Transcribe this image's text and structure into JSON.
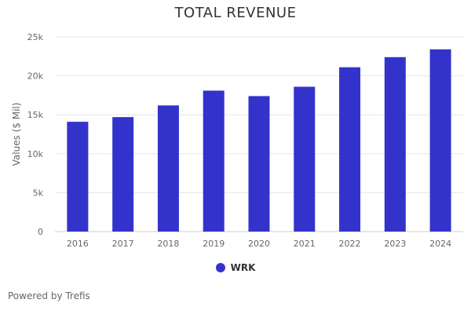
{
  "chart_data": {
    "type": "bar",
    "title": "TOTAL REVENUE",
    "categories": [
      "2016",
      "2017",
      "2018",
      "2019",
      "2020",
      "2021",
      "2022",
      "2023",
      "2024"
    ],
    "series": [
      {
        "name": "WRK",
        "values": [
          14100,
          14700,
          16200,
          18100,
          17400,
          18600,
          21100,
          22400,
          23400
        ]
      }
    ],
    "xlabel": "",
    "ylabel": "Values ($ Mil)",
    "ylim": [
      0,
      25000
    ],
    "yticks": [
      0,
      5000,
      10000,
      15000,
      20000,
      25000
    ],
    "ytick_labels": [
      "0",
      "5k",
      "10k",
      "15k",
      "20k",
      "25k"
    ],
    "grid": true,
    "legend_position": "bottom-center"
  },
  "colors": {
    "bar": "#3333cc",
    "grid": "#e6e6e6"
  },
  "footer": {
    "credit": "Powered by Trefis"
  }
}
